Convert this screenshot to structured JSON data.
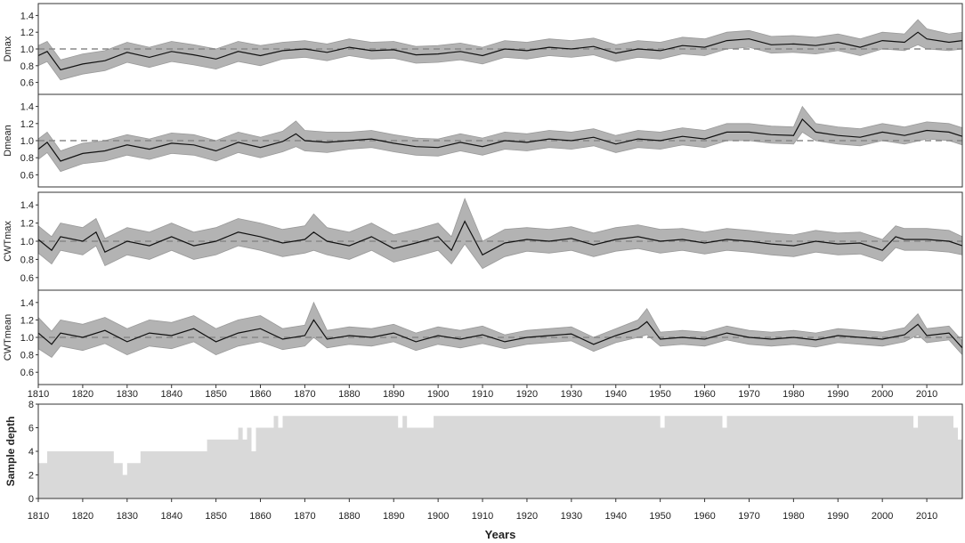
{
  "chart_data": [
    {
      "type": "line",
      "panel": "Dmax",
      "ylabel": "Dmax",
      "ylim": [
        0.5,
        1.5
      ],
      "yticks": [
        "0.6",
        "0.8",
        "1.0",
        "1.2",
        "1.4"
      ],
      "xlim": [
        1810,
        2018
      ],
      "reference_line": 1.0,
      "series_style": "mean line with grey confidence band",
      "x": [
        1810,
        1812,
        1815,
        1820,
        1825,
        1830,
        1835,
        1840,
        1845,
        1850,
        1855,
        1860,
        1865,
        1870,
        1875,
        1880,
        1885,
        1890,
        1895,
        1900,
        1905,
        1910,
        1915,
        1920,
        1925,
        1930,
        1935,
        1940,
        1945,
        1950,
        1955,
        1960,
        1965,
        1970,
        1975,
        1980,
        1985,
        1990,
        1995,
        2000,
        2005,
        2008,
        2010,
        2015,
        2018
      ],
      "values": [
        0.92,
        0.97,
        0.75,
        0.82,
        0.86,
        0.96,
        0.9,
        0.97,
        0.93,
        0.88,
        0.97,
        0.92,
        0.98,
        1.0,
        0.96,
        1.02,
        0.98,
        0.99,
        0.93,
        0.94,
        0.97,
        0.92,
        1.0,
        0.98,
        1.02,
        1.0,
        1.03,
        0.95,
        1.0,
        0.98,
        1.04,
        1.02,
        1.1,
        1.12,
        1.05,
        1.06,
        1.04,
        1.08,
        1.02,
        1.1,
        1.08,
        1.2,
        1.12,
        1.08,
        1.1
      ],
      "band": [
        0.12,
        0.12,
        0.12,
        0.12,
        0.12,
        0.12,
        0.12,
        0.12,
        0.12,
        0.12,
        0.12,
        0.12,
        0.1,
        0.1,
        0.1,
        0.1,
        0.1,
        0.1,
        0.1,
        0.1,
        0.1,
        0.1,
        0.1,
        0.1,
        0.1,
        0.1,
        0.1,
        0.1,
        0.1,
        0.1,
        0.1,
        0.1,
        0.1,
        0.1,
        0.1,
        0.1,
        0.1,
        0.1,
        0.1,
        0.1,
        0.1,
        0.15,
        0.12,
        0.1,
        0.1
      ]
    },
    {
      "type": "line",
      "panel": "Dmean",
      "ylabel": "Dmean",
      "ylim": [
        0.5,
        1.5
      ],
      "yticks": [
        "0.6",
        "0.8",
        "1.0",
        "1.2",
        "1.4"
      ],
      "xlim": [
        1810,
        2018
      ],
      "reference_line": 1.0,
      "series_style": "mean line with grey confidence band",
      "x": [
        1810,
        1812,
        1815,
        1820,
        1825,
        1830,
        1835,
        1840,
        1845,
        1850,
        1855,
        1860,
        1865,
        1868,
        1870,
        1875,
        1880,
        1885,
        1890,
        1895,
        1900,
        1905,
        1910,
        1915,
        1920,
        1925,
        1930,
        1935,
        1940,
        1945,
        1950,
        1955,
        1960,
        1965,
        1970,
        1975,
        1980,
        1982,
        1985,
        1990,
        1995,
        2000,
        2005,
        2010,
        2015,
        2018
      ],
      "values": [
        0.9,
        0.98,
        0.76,
        0.85,
        0.88,
        0.95,
        0.9,
        0.97,
        0.95,
        0.88,
        0.98,
        0.92,
        0.99,
        1.08,
        1.0,
        0.98,
        1.0,
        1.02,
        0.97,
        0.93,
        0.92,
        0.98,
        0.93,
        1.0,
        0.98,
        1.02,
        1.0,
        1.04,
        0.96,
        1.02,
        1.0,
        1.05,
        1.02,
        1.1,
        1.1,
        1.07,
        1.06,
        1.25,
        1.1,
        1.06,
        1.04,
        1.1,
        1.06,
        1.12,
        1.1,
        1.05
      ],
      "band": [
        0.12,
        0.12,
        0.12,
        0.12,
        0.12,
        0.12,
        0.12,
        0.12,
        0.12,
        0.12,
        0.12,
        0.12,
        0.12,
        0.15,
        0.12,
        0.12,
        0.1,
        0.1,
        0.1,
        0.1,
        0.1,
        0.1,
        0.1,
        0.1,
        0.1,
        0.1,
        0.1,
        0.1,
        0.1,
        0.1,
        0.1,
        0.1,
        0.1,
        0.1,
        0.1,
        0.1,
        0.1,
        0.15,
        0.1,
        0.1,
        0.1,
        0.1,
        0.1,
        0.1,
        0.1,
        0.1
      ]
    },
    {
      "type": "line",
      "panel": "CWTmax",
      "ylabel": "CWTmax",
      "ylim": [
        0.5,
        1.5
      ],
      "yticks": [
        "0.6",
        "0.8",
        "1.0",
        "1.2",
        "1.4"
      ],
      "xlim": [
        1810,
        2018
      ],
      "reference_line": 1.0,
      "series_style": "mean line with grey confidence band",
      "x": [
        1810,
        1813,
        1815,
        1820,
        1823,
        1825,
        1830,
        1835,
        1840,
        1845,
        1850,
        1855,
        1860,
        1865,
        1870,
        1872,
        1875,
        1880,
        1885,
        1890,
        1895,
        1900,
        1903,
        1906,
        1910,
        1915,
        1920,
        1925,
        1930,
        1935,
        1940,
        1945,
        1950,
        1955,
        1960,
        1965,
        1970,
        1975,
        1980,
        1985,
        1990,
        1995,
        2000,
        2003,
        2005,
        2010,
        2015,
        2018
      ],
      "values": [
        1.02,
        0.9,
        1.05,
        1.0,
        1.1,
        0.88,
        1.0,
        0.95,
        1.05,
        0.95,
        1.0,
        1.1,
        1.05,
        0.98,
        1.02,
        1.1,
        1.0,
        0.95,
        1.05,
        0.92,
        0.98,
        1.05,
        0.9,
        1.22,
        0.85,
        0.98,
        1.02,
        1.0,
        1.03,
        0.96,
        1.02,
        1.05,
        1.0,
        1.02,
        0.98,
        1.02,
        1.0,
        0.97,
        0.95,
        1.0,
        0.97,
        0.98,
        0.9,
        1.05,
        1.02,
        1.02,
        1.0,
        0.95
      ],
      "band": [
        0.15,
        0.15,
        0.15,
        0.15,
        0.15,
        0.15,
        0.15,
        0.15,
        0.15,
        0.15,
        0.15,
        0.15,
        0.15,
        0.15,
        0.15,
        0.2,
        0.15,
        0.15,
        0.15,
        0.15,
        0.15,
        0.15,
        0.15,
        0.25,
        0.15,
        0.15,
        0.13,
        0.13,
        0.13,
        0.13,
        0.13,
        0.13,
        0.13,
        0.12,
        0.12,
        0.12,
        0.12,
        0.12,
        0.12,
        0.12,
        0.12,
        0.12,
        0.12,
        0.12,
        0.12,
        0.12,
        0.12,
        0.1
      ]
    },
    {
      "type": "line",
      "panel": "CWTmean",
      "ylabel": "CWTmean",
      "ylim": [
        0.5,
        1.5
      ],
      "yticks": [
        "0.6",
        "0.8",
        "1.0",
        "1.2",
        "1.4"
      ],
      "xlim": [
        1810,
        2018
      ],
      "reference_line": 1.0,
      "series_style": "mean line with grey confidence band",
      "x": [
        1810,
        1813,
        1815,
        1820,
        1825,
        1830,
        1835,
        1840,
        1845,
        1850,
        1855,
        1860,
        1865,
        1870,
        1872,
        1875,
        1880,
        1885,
        1890,
        1895,
        1900,
        1905,
        1910,
        1915,
        1920,
        1925,
        1930,
        1935,
        1940,
        1945,
        1947,
        1950,
        1955,
        1960,
        1965,
        1970,
        1975,
        1980,
        1985,
        1990,
        1995,
        2000,
        2005,
        2008,
        2010,
        2015,
        2018
      ],
      "values": [
        1.05,
        0.92,
        1.05,
        1.0,
        1.08,
        0.95,
        1.05,
        1.02,
        1.1,
        0.95,
        1.05,
        1.1,
        0.98,
        1.02,
        1.2,
        0.98,
        1.02,
        1.0,
        1.05,
        0.95,
        1.02,
        0.98,
        1.03,
        0.95,
        1.0,
        1.02,
        1.04,
        0.92,
        1.02,
        1.1,
        1.18,
        0.98,
        1.0,
        0.98,
        1.05,
        1.0,
        0.98,
        1.0,
        0.97,
        1.02,
        1.0,
        0.98,
        1.03,
        1.15,
        1.02,
        1.05,
        0.88
      ],
      "band": [
        0.18,
        0.15,
        0.15,
        0.15,
        0.15,
        0.15,
        0.15,
        0.15,
        0.15,
        0.15,
        0.15,
        0.15,
        0.12,
        0.12,
        0.2,
        0.1,
        0.1,
        0.1,
        0.1,
        0.1,
        0.1,
        0.1,
        0.1,
        0.08,
        0.08,
        0.08,
        0.08,
        0.08,
        0.08,
        0.1,
        0.15,
        0.08,
        0.08,
        0.08,
        0.08,
        0.08,
        0.08,
        0.08,
        0.08,
        0.08,
        0.08,
        0.08,
        0.08,
        0.12,
        0.08,
        0.08,
        0.08
      ]
    },
    {
      "type": "area",
      "panel": "Sample depth",
      "ylabel": "Sample depth",
      "xlabel": "Years",
      "ylim": [
        0,
        8
      ],
      "yticks": [
        "0",
        "2",
        "4",
        "6",
        "8"
      ],
      "xlim": [
        1810,
        2018
      ],
      "x": [
        1810,
        1812,
        1827,
        1828,
        1829,
        1830,
        1833,
        1848,
        1855,
        1856,
        1857,
        1858,
        1859,
        1863,
        1864,
        1865,
        1891,
        1892,
        1893,
        1899,
        1900,
        1950,
        1951,
        1952,
        1964,
        1965,
        1966,
        2007,
        2008,
        2009,
        2016,
        2017,
        2018
      ],
      "values": [
        3,
        4,
        3,
        3,
        2,
        3,
        4,
        5,
        6,
        5,
        6,
        4,
        6,
        7,
        6,
        7,
        6,
        7,
        6,
        7,
        7,
        6,
        7,
        7,
        6,
        7,
        7,
        6,
        7,
        7,
        6,
        5,
        5
      ]
    }
  ],
  "xticks": [
    "1810",
    "1820",
    "1830",
    "1840",
    "1850",
    "1860",
    "1870",
    "1880",
    "1890",
    "1900",
    "1910",
    "1920",
    "1930",
    "1940",
    "1950",
    "1960",
    "1970",
    "1980",
    "1990",
    "2000",
    "2010"
  ],
  "colors": {
    "band": "#b3b3b3",
    "band_edge": "#9a9a9a",
    "line": "#111111",
    "reference": "#888888",
    "depth_fill": "#d9d9d9",
    "axes": "#333333"
  }
}
